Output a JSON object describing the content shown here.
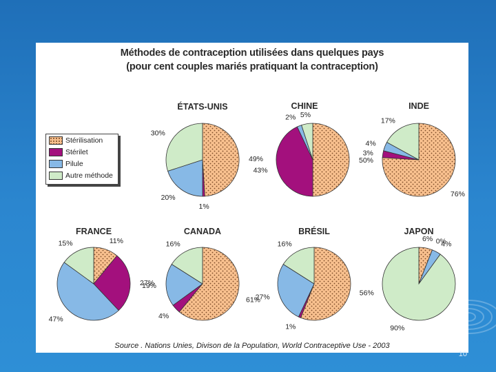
{
  "title_line1": "Méthodes de contraception utilisées dans quelques pays",
  "title_line2": "(pour cent couples mariés pratiquant la contraception)",
  "source": "Source . Nations Unies, Divison de la Population, World Contraceptive Use - 2003",
  "slide_number": "10",
  "legend": {
    "items": [
      {
        "label": "Stérilisation",
        "color": "#f8c08e",
        "pattern": "dots"
      },
      {
        "label": "Stérilet",
        "color": "#a3107d"
      },
      {
        "label": "Pilule",
        "color": "#87b9e6"
      },
      {
        "label": "Autre méthode",
        "color": "#cfebc8"
      }
    ]
  },
  "chart_data": [
    {
      "type": "pie",
      "title": "ÉTATS-UNIS",
      "slices": [
        {
          "label": "Stérilisation",
          "value": 49,
          "text": "49%"
        },
        {
          "label": "Stérilet",
          "value": 1,
          "text": "1%"
        },
        {
          "label": "Pilule",
          "value": 20,
          "text": "20%"
        },
        {
          "label": "Autre méthode",
          "value": 30,
          "text": "30%"
        }
      ]
    },
    {
      "type": "pie",
      "title": "CHINE",
      "slices": [
        {
          "label": "Stérilisation",
          "value": 50,
          "text": "50%"
        },
        {
          "label": "Stérilet",
          "value": 43,
          "text": "43%"
        },
        {
          "label": "Pilule",
          "value": 2,
          "text": "2%"
        },
        {
          "label": "Autre méthode",
          "value": 5,
          "text": "5%"
        }
      ]
    },
    {
      "type": "pie",
      "title": "INDE",
      "slices": [
        {
          "label": "Stérilisation",
          "value": 76,
          "text": "76%"
        },
        {
          "label": "Stérilet",
          "value": 3,
          "text": "3%"
        },
        {
          "label": "Pilule",
          "value": 4,
          "text": "4%"
        },
        {
          "label": "Autre méthode",
          "value": 17,
          "text": "17%"
        }
      ]
    },
    {
      "type": "pie",
      "title": "FRANCE",
      "slices": [
        {
          "label": "Stérilisation",
          "value": 11,
          "text": "11%"
        },
        {
          "label": "Stérilet",
          "value": 27,
          "text": "27%"
        },
        {
          "label": "Pilule",
          "value": 47,
          "text": "47%"
        },
        {
          "label": "Autre méthode",
          "value": 15,
          "text": "15%"
        }
      ]
    },
    {
      "type": "pie",
      "title": "CANADA",
      "slices": [
        {
          "label": "Stérilisation",
          "value": 61,
          "text": "61%"
        },
        {
          "label": "Stérilet",
          "value": 4,
          "text": "4%"
        },
        {
          "label": "Pilule",
          "value": 19,
          "text": "19%"
        },
        {
          "label": "Autre méthode",
          "value": 16,
          "text": "16%"
        }
      ]
    },
    {
      "type": "pie",
      "title": "BRÉSIL",
      "slices": [
        {
          "label": "Stérilisation",
          "value": 56,
          "text": "56%"
        },
        {
          "label": "Stérilet",
          "value": 1,
          "text": "1%"
        },
        {
          "label": "Pilule",
          "value": 27,
          "text": "27%"
        },
        {
          "label": "Autre méthode",
          "value": 16,
          "text": "16%"
        }
      ]
    },
    {
      "type": "pie",
      "title": "JAPON",
      "slices": [
        {
          "label": "Stérilisation",
          "value": 6,
          "text": "6%"
        },
        {
          "label": "Stérilet",
          "value": 0,
          "text": "0%"
        },
        {
          "label": "Pilule",
          "value": 4,
          "text": "4%"
        },
        {
          "label": "Autre méthode",
          "value": 90,
          "text": "90%"
        }
      ]
    }
  ]
}
